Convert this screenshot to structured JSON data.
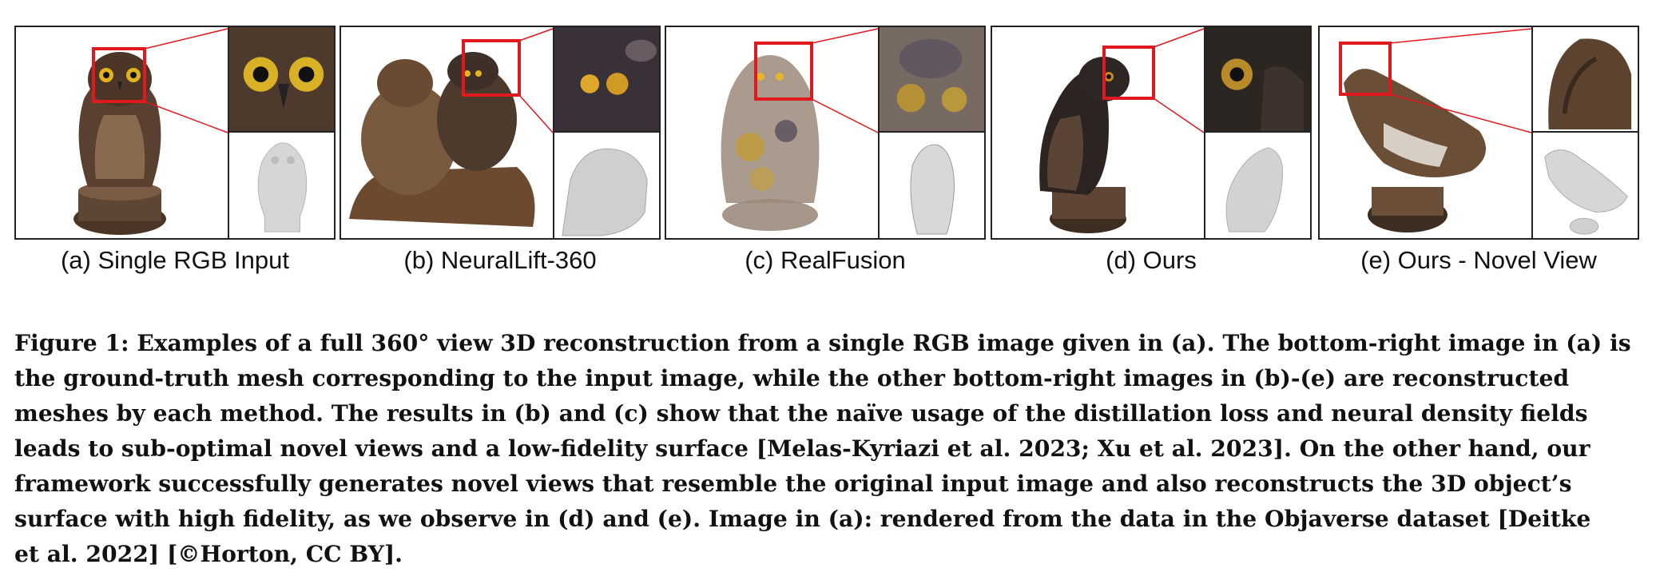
{
  "panels": [
    {
      "id": "a",
      "label": "(a) Single RGB Input"
    },
    {
      "id": "b",
      "label": "(b) NeuralLift-360"
    },
    {
      "id": "c",
      "label": "(c) RealFusion"
    },
    {
      "id": "d",
      "label": "(d) Ours"
    },
    {
      "id": "e",
      "label": "(e) Ours - Novel View"
    }
  ],
  "caption_lines": [
    "Figure 1: Examples of a full 360° view 3D reconstruction from a single RGB image given in (a). The bottom-right image in (a) is",
    "the ground-truth mesh corresponding to the input image, while the other bottom-right images in (b)-(e) are reconstructed",
    "meshes by each method. The results in (b) and (c) show that the naïve usage of the distillation loss and neural density fields",
    "leads to sub-optimal novel views and a low-fidelity surface [Melas-Kyriazi et al. 2023; Xu et al. 2023]. On the other hand, our",
    "framework successfully generates novel views that resemble the original input image and also reconstructs the 3D object’s",
    "surface with high fidelity, as we observe in (d) and (e). Image in (a): rendered from the data in the Objaverse dataset [Deitke",
    "et al. 2022] [©Horton, CC BY]."
  ],
  "colors": {
    "highlight_box": "#e0191e",
    "owl_brown": "#5a4030",
    "mesh_gray": "#cfcfcf"
  }
}
